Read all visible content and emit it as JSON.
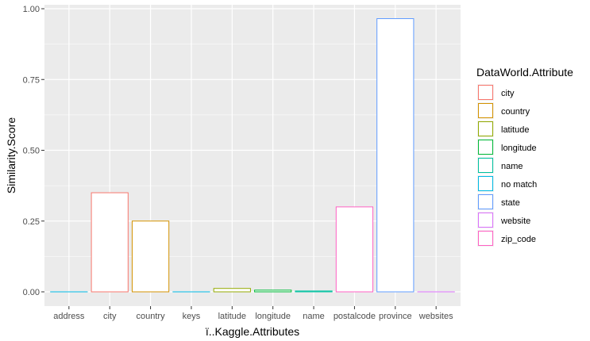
{
  "chart_data": {
    "type": "bar",
    "xlabel": "ï..Kaggle.Attributes",
    "ylabel": "Similarity.Score",
    "ylim": [
      0,
      1
    ],
    "yticks": [
      0.0,
      0.25,
      0.5,
      0.75,
      1.0
    ],
    "ytick_labels": [
      "0.00",
      "0.25",
      "0.50",
      "0.75",
      "1.00"
    ],
    "grid": true,
    "background": "#EBEBEB",
    "bar_fill": "#FFFFFF",
    "categories": [
      "address",
      "city",
      "country",
      "keys",
      "latitude",
      "longitude",
      "name",
      "postalcode",
      "province",
      "websites"
    ],
    "bars": [
      {
        "x": "address",
        "value": 0.0,
        "group": "no match"
      },
      {
        "x": "city",
        "value": 0.35,
        "group": "city"
      },
      {
        "x": "country",
        "value": 0.25,
        "group": "country"
      },
      {
        "x": "keys",
        "value": 0.0,
        "group": "no match"
      },
      {
        "x": "latitude",
        "value": 0.012,
        "group": "latitude"
      },
      {
        "x": "longitude",
        "value": 0.006,
        "group": "longitude"
      },
      {
        "x": "name",
        "value": 0.003,
        "group": "name"
      },
      {
        "x": "postalcode",
        "value": 0.3,
        "group": "zip_code"
      },
      {
        "x": "province",
        "value": 0.965,
        "group": "state"
      },
      {
        "x": "websites",
        "value": 0.0,
        "group": "website"
      }
    ],
    "legend": {
      "title": "DataWorld.Attribute",
      "placement": "right",
      "entries": [
        {
          "label": "city",
          "color": "#F8766D"
        },
        {
          "label": "country",
          "color": "#D39200"
        },
        {
          "label": "latitude",
          "color": "#93AA00"
        },
        {
          "label": "longitude",
          "color": "#00BA38"
        },
        {
          "label": "name",
          "color": "#00C19F"
        },
        {
          "label": "no match",
          "color": "#00B9E3"
        },
        {
          "label": "state",
          "color": "#619CFF"
        },
        {
          "label": "website",
          "color": "#DB72FB"
        },
        {
          "label": "zip_code",
          "color": "#FF61C3"
        }
      ]
    }
  }
}
